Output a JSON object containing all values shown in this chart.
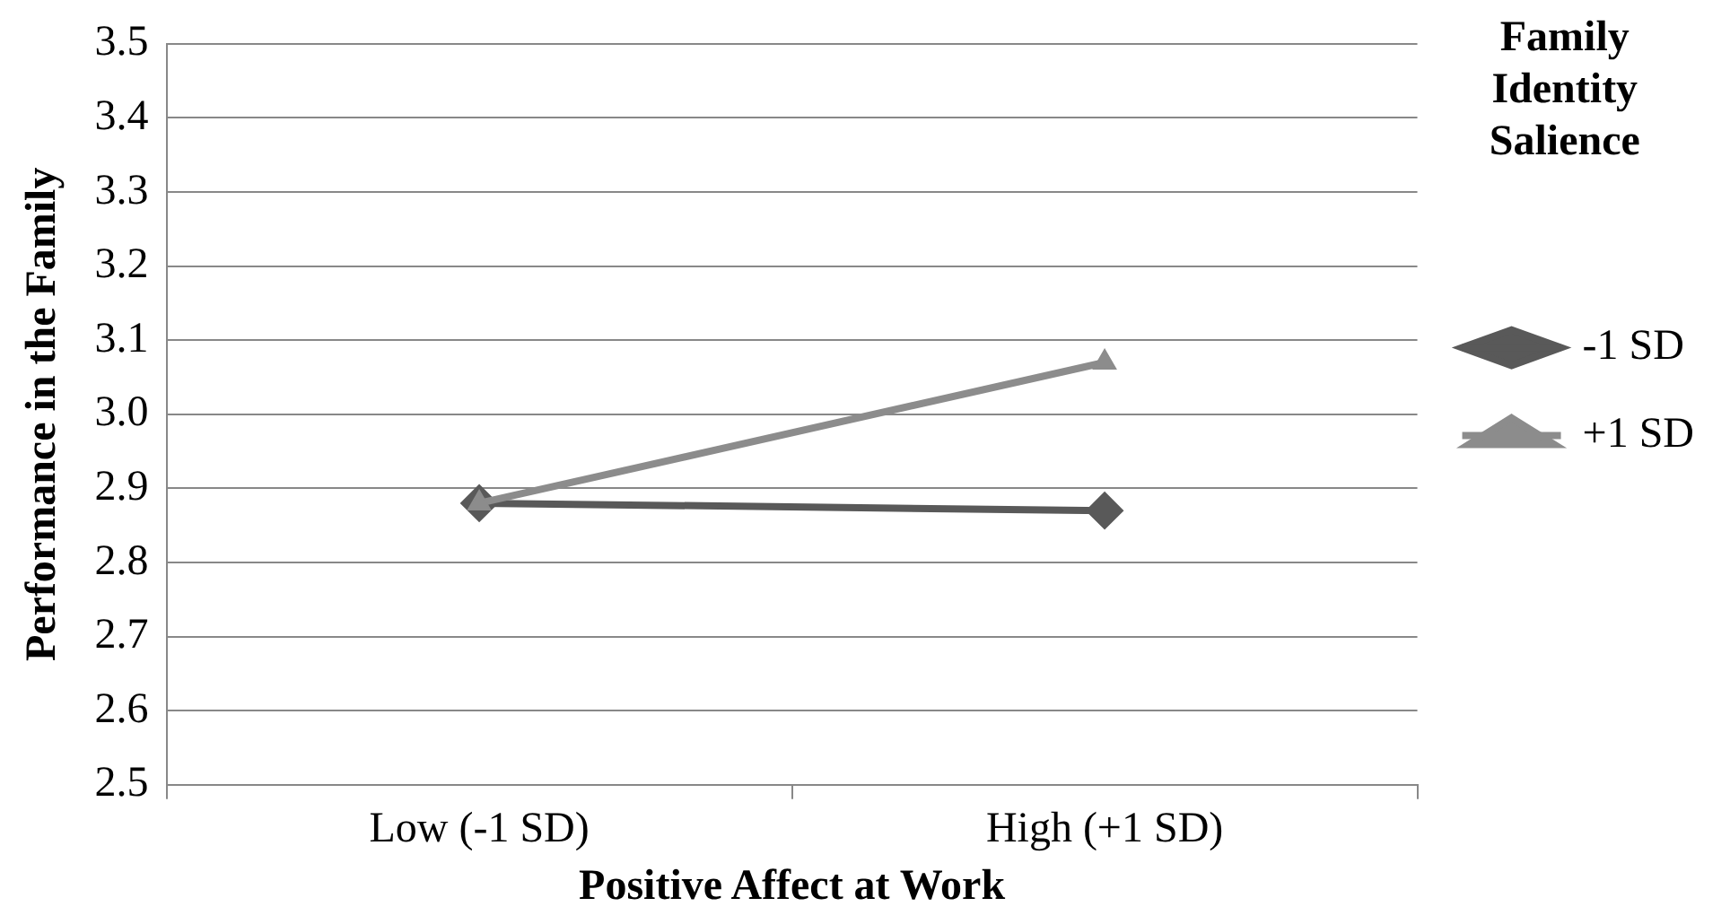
{
  "chart_data": {
    "type": "line",
    "xlabel": "Positive Affect at Work",
    "ylabel": "Performance in the Family",
    "legend_title": "Family Identity Salience",
    "categories": [
      "Low (-1 SD)",
      "High (+1 SD)"
    ],
    "series": [
      {
        "name": "-1 SD",
        "color": "#595959",
        "marker": "diamond",
        "values": [
          2.88,
          2.87
        ]
      },
      {
        "name": "+1 SD",
        "color": "#8c8c8c",
        "marker": "triangle",
        "values": [
          2.88,
          3.07
        ]
      }
    ],
    "ylim": [
      2.5,
      3.5
    ],
    "yticks": [
      2.5,
      2.6,
      2.7,
      2.8,
      2.9,
      {
        "value": 3,
        "label": "3.0"
      },
      3.1,
      3.2,
      3.3,
      3.4,
      3.5
    ],
    "grid": "y",
    "legend": "right"
  }
}
